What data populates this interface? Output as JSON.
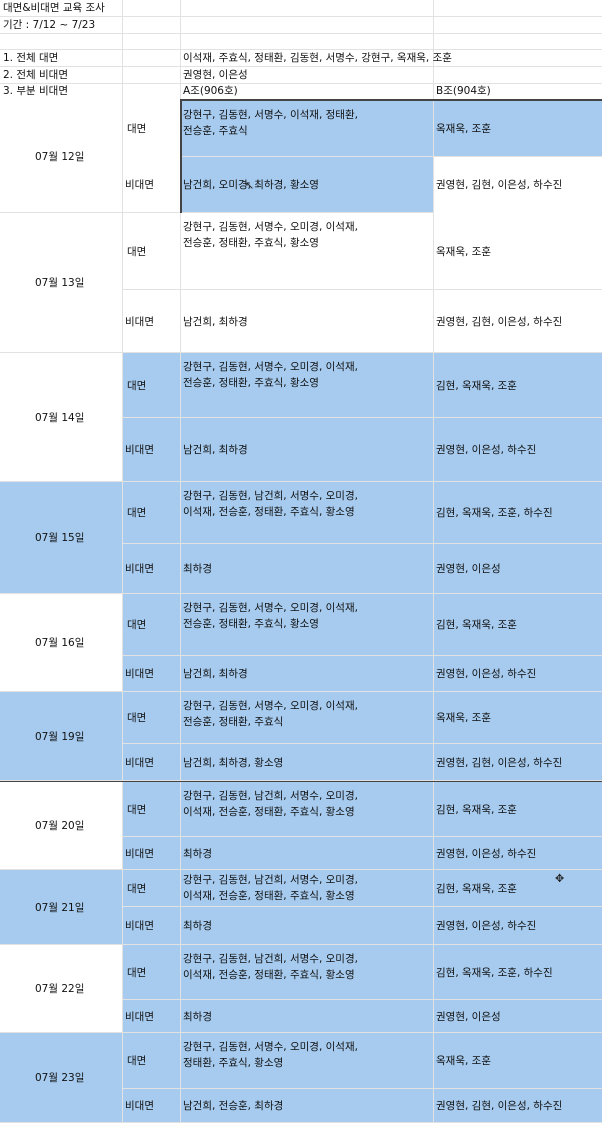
{
  "title": "대면&비대면 교육 조사",
  "period": "기간 : 7/12 ~ 7/23",
  "summary": [
    {
      "label": "1. 전체 대면",
      "value": "이석재, 주효식, 정태환, 김동현, 서명수, 강현구, 옥재욱, 조훈"
    },
    {
      "label": "2. 전체 비대면",
      "value": "권영현, 이은성"
    },
    {
      "label": "3. 부분 비대면",
      "value": "A조(906호)",
      "value2": "B조(904호)"
    }
  ],
  "type_labels": {
    "in_person": "대면",
    "remote": "비대면"
  },
  "days": [
    {
      "date": "07월 12일",
      "in_a": [
        "강현구, 김동현, 서명수, 이석재, 정태환,",
        "전승훈, 주효식"
      ],
      "in_b": "옥재욱, 조훈",
      "re_a": "남건희, 오미경, 최하경, 황소영",
      "re_b": "권영현, 김현, 이은성, 하수진"
    },
    {
      "date": "07월 13일",
      "in_a": [
        "강현구, 김동현, 서명수, 오미경, 이석재,",
        "전승훈, 정태환, 주효식, 황소영"
      ],
      "in_b": "옥재욱, 조훈",
      "re_a": "남건희, 최하경",
      "re_b": "권영현, 김현, 이은성, 하수진"
    },
    {
      "date": "07월 14일",
      "in_a": [
        "강현구, 김동현, 서명수, 오미경, 이석재,",
        "전승훈, 정태환, 주효식, 황소영"
      ],
      "in_b": "김현, 옥재욱, 조훈",
      "re_a": "남건희, 최하경",
      "re_b": "권영현, 이은성, 하수진"
    },
    {
      "date": "07월 15일",
      "in_a": [
        "강현구, 김동현, 남건희, 서명수, 오미경,",
        "이석재, 전승훈, 정태환, 주효식, 황소영"
      ],
      "in_b": "김현, 옥재욱, 조훈, 하수진",
      "re_a": "최하경",
      "re_b": "권영현, 이은성"
    },
    {
      "date": "07월 16일",
      "in_a": [
        "강현구, 김동현, 서명수, 오미경, 이석재,",
        "전승훈, 정태환, 주효식, 황소영"
      ],
      "in_b": "김현, 옥재욱, 조훈",
      "re_a": "남건희, 최하경",
      "re_b": "권영현, 이은성, 하수진"
    },
    {
      "date": "07월 19일",
      "in_a": [
        "강현구, 김동현, 서명수, 오미경, 이석재,",
        "전승훈, 정태환, 주효식"
      ],
      "in_b": "옥재욱, 조훈",
      "re_a": "남건희, 최하경, 황소영",
      "re_b": "권영현, 김현, 이은성, 하수진"
    },
    {
      "date": "07월 20일",
      "in_a": [
        "강현구, 김동현, 남건희, 서명수, 오미경,",
        "이석재, 전승훈, 정태환, 주효식, 황소영"
      ],
      "in_b": "김현, 옥재욱, 조훈",
      "re_a": "최하경",
      "re_b": "권영현, 이은성, 하수진"
    },
    {
      "date": "07월 21일",
      "in_a": [
        "강현구, 김동현, 남건희, 서명수, 오미경,",
        "이석재, 전승훈, 정태환, 주효식, 황소영"
      ],
      "in_b": "김현, 옥재욱, 조훈",
      "re_a": "최하경",
      "re_b": "권영현, 이은성, 하수진"
    },
    {
      "date": "07월 22일",
      "in_a": [
        "강현구, 김동현, 남건희, 서명수, 오미경,",
        "이석재, 전승훈, 정태환, 주효식, 황소영"
      ],
      "in_b": "김현, 옥재욱, 조훈, 하수진",
      "re_a": "최하경",
      "re_b": "권영현, 이은성"
    },
    {
      "date": "07월 23일",
      "in_a": [
        "강현구, 김동현, 서명수, 오미경, 이석재,",
        "정태환, 주효식, 황소영"
      ],
      "in_b": "옥재욱, 조훈",
      "re_a": "남건희, 전승훈, 최하경",
      "re_b": "권영현, 김현, 이은성, 하수진"
    }
  ],
  "colors": {
    "fill": "#a6cbef",
    "grid": "#e2e2e2",
    "border": "#444444"
  }
}
